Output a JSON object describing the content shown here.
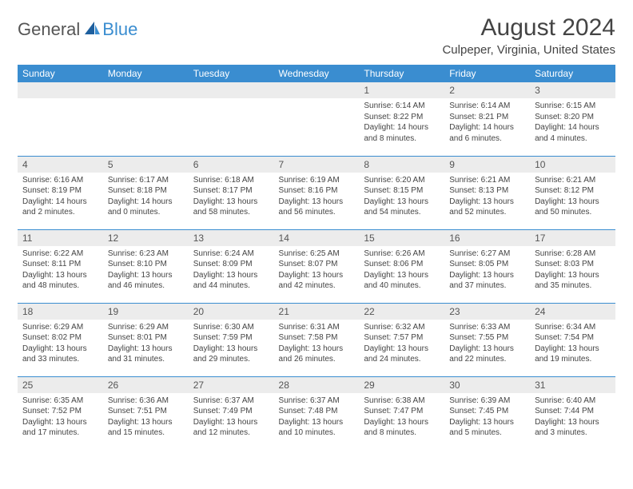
{
  "logo": {
    "general": "General",
    "blue": "Blue"
  },
  "title": "August 2024",
  "location": "Culpeper, Virginia, United States",
  "colors": {
    "accent": "#3a8dd0",
    "grayRow": "#ececec",
    "text": "#444"
  },
  "weekdays": [
    "Sunday",
    "Monday",
    "Tuesday",
    "Wednesday",
    "Thursday",
    "Friday",
    "Saturday"
  ],
  "startOffset": 4,
  "days": [
    {
      "n": 1,
      "sr": "6:14 AM",
      "ss": "8:22 PM",
      "dl": "14 hours and 8 minutes."
    },
    {
      "n": 2,
      "sr": "6:14 AM",
      "ss": "8:21 PM",
      "dl": "14 hours and 6 minutes."
    },
    {
      "n": 3,
      "sr": "6:15 AM",
      "ss": "8:20 PM",
      "dl": "14 hours and 4 minutes."
    },
    {
      "n": 4,
      "sr": "6:16 AM",
      "ss": "8:19 PM",
      "dl": "14 hours and 2 minutes."
    },
    {
      "n": 5,
      "sr": "6:17 AM",
      "ss": "8:18 PM",
      "dl": "14 hours and 0 minutes."
    },
    {
      "n": 6,
      "sr": "6:18 AM",
      "ss": "8:17 PM",
      "dl": "13 hours and 58 minutes."
    },
    {
      "n": 7,
      "sr": "6:19 AM",
      "ss": "8:16 PM",
      "dl": "13 hours and 56 minutes."
    },
    {
      "n": 8,
      "sr": "6:20 AM",
      "ss": "8:15 PM",
      "dl": "13 hours and 54 minutes."
    },
    {
      "n": 9,
      "sr": "6:21 AM",
      "ss": "8:13 PM",
      "dl": "13 hours and 52 minutes."
    },
    {
      "n": 10,
      "sr": "6:21 AM",
      "ss": "8:12 PM",
      "dl": "13 hours and 50 minutes."
    },
    {
      "n": 11,
      "sr": "6:22 AM",
      "ss": "8:11 PM",
      "dl": "13 hours and 48 minutes."
    },
    {
      "n": 12,
      "sr": "6:23 AM",
      "ss": "8:10 PM",
      "dl": "13 hours and 46 minutes."
    },
    {
      "n": 13,
      "sr": "6:24 AM",
      "ss": "8:09 PM",
      "dl": "13 hours and 44 minutes."
    },
    {
      "n": 14,
      "sr": "6:25 AM",
      "ss": "8:07 PM",
      "dl": "13 hours and 42 minutes."
    },
    {
      "n": 15,
      "sr": "6:26 AM",
      "ss": "8:06 PM",
      "dl": "13 hours and 40 minutes."
    },
    {
      "n": 16,
      "sr": "6:27 AM",
      "ss": "8:05 PM",
      "dl": "13 hours and 37 minutes."
    },
    {
      "n": 17,
      "sr": "6:28 AM",
      "ss": "8:03 PM",
      "dl": "13 hours and 35 minutes."
    },
    {
      "n": 18,
      "sr": "6:29 AM",
      "ss": "8:02 PM",
      "dl": "13 hours and 33 minutes."
    },
    {
      "n": 19,
      "sr": "6:29 AM",
      "ss": "8:01 PM",
      "dl": "13 hours and 31 minutes."
    },
    {
      "n": 20,
      "sr": "6:30 AM",
      "ss": "7:59 PM",
      "dl": "13 hours and 29 minutes."
    },
    {
      "n": 21,
      "sr": "6:31 AM",
      "ss": "7:58 PM",
      "dl": "13 hours and 26 minutes."
    },
    {
      "n": 22,
      "sr": "6:32 AM",
      "ss": "7:57 PM",
      "dl": "13 hours and 24 minutes."
    },
    {
      "n": 23,
      "sr": "6:33 AM",
      "ss": "7:55 PM",
      "dl": "13 hours and 22 minutes."
    },
    {
      "n": 24,
      "sr": "6:34 AM",
      "ss": "7:54 PM",
      "dl": "13 hours and 19 minutes."
    },
    {
      "n": 25,
      "sr": "6:35 AM",
      "ss": "7:52 PM",
      "dl": "13 hours and 17 minutes."
    },
    {
      "n": 26,
      "sr": "6:36 AM",
      "ss": "7:51 PM",
      "dl": "13 hours and 15 minutes."
    },
    {
      "n": 27,
      "sr": "6:37 AM",
      "ss": "7:49 PM",
      "dl": "13 hours and 12 minutes."
    },
    {
      "n": 28,
      "sr": "6:37 AM",
      "ss": "7:48 PM",
      "dl": "13 hours and 10 minutes."
    },
    {
      "n": 29,
      "sr": "6:38 AM",
      "ss": "7:47 PM",
      "dl": "13 hours and 8 minutes."
    },
    {
      "n": 30,
      "sr": "6:39 AM",
      "ss": "7:45 PM",
      "dl": "13 hours and 5 minutes."
    },
    {
      "n": 31,
      "sr": "6:40 AM",
      "ss": "7:44 PM",
      "dl": "13 hours and 3 minutes."
    }
  ],
  "labels": {
    "sunrise": "Sunrise: ",
    "sunset": "Sunset: ",
    "daylight": "Daylight: "
  }
}
